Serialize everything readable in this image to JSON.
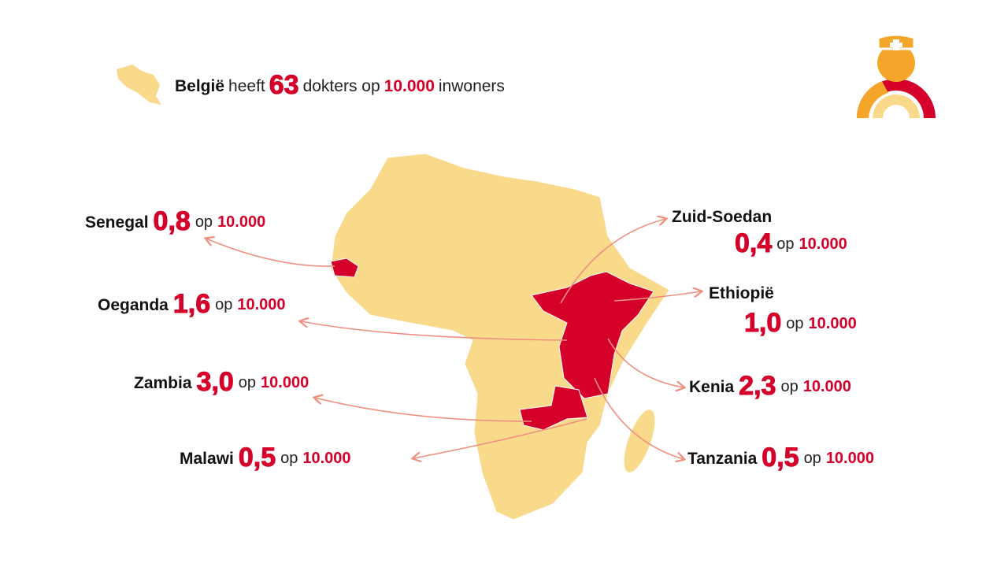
{
  "header": {
    "country": "België",
    "verb": "heeft",
    "value": "63",
    "unit": "dokters op",
    "per": "10.000",
    "tail": "inwoners"
  },
  "countries": [
    {
      "name": "Senegal",
      "value": "0,8",
      "op": "op",
      "per": "10.000"
    },
    {
      "name": "Oeganda",
      "value": "1,6",
      "op": "op",
      "per": "10.000"
    },
    {
      "name": "Zambia",
      "value": "3,0",
      "op": "op",
      "per": "10.000"
    },
    {
      "name": "Malawi",
      "value": "0,5",
      "op": "op",
      "per": "10.000"
    },
    {
      "name": "Zuid-Soedan",
      "value": "0,4",
      "op": "op",
      "per": "10.000"
    },
    {
      "name": "Ethiopië",
      "value": "1,0",
      "op": "op",
      "per": "10.000"
    },
    {
      "name": "Kenia",
      "value": "2,3",
      "op": "op",
      "per": "10.000"
    },
    {
      "name": "Tanzania",
      "value": "0,5",
      "op": "op",
      "per": "10.000"
    }
  ]
}
